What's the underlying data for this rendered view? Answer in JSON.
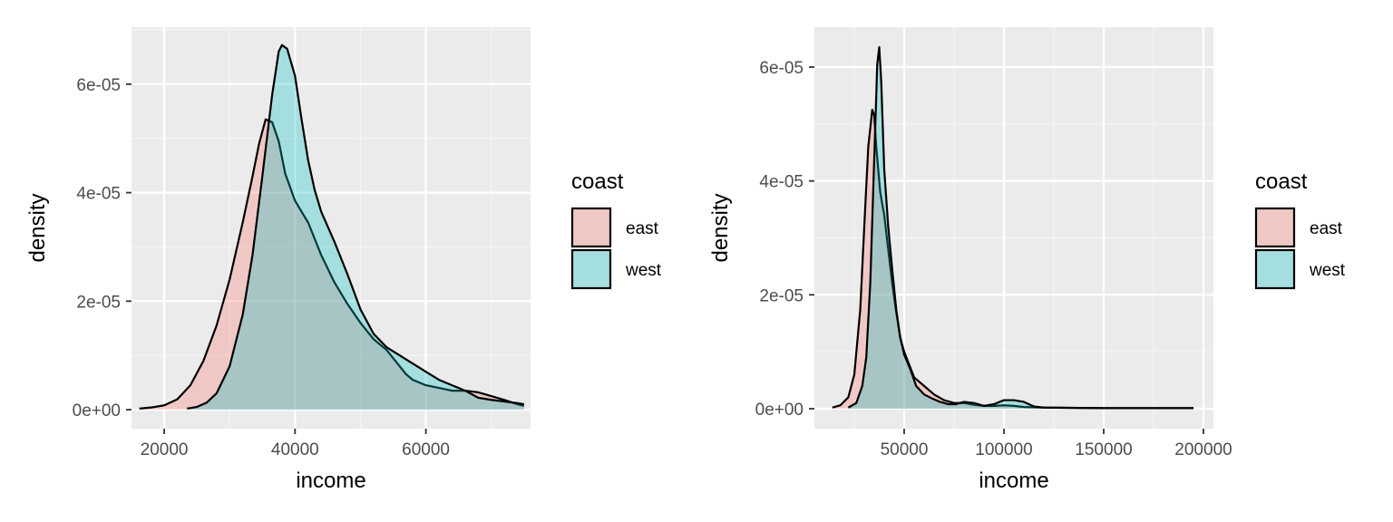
{
  "colors": {
    "panel_bg": "#ebebeb",
    "grid_major": "#ffffff",
    "grid_minor": "#f5f5f5",
    "east_fill": "#f8766d",
    "west_fill": "#00bfc4",
    "outline": "#000000"
  },
  "chart_data": [
    {
      "type": "area",
      "xlabel": "income",
      "ylabel": "density",
      "xlim": [
        15000,
        76000
      ],
      "ylim": [
        -3.5e-06,
        7.05e-05
      ],
      "x_ticks": [
        20000,
        40000,
        60000
      ],
      "x_tick_labels": [
        "20000",
        "40000",
        "60000"
      ],
      "y_ticks": [
        0,
        2e-05,
        4e-05,
        6e-05
      ],
      "y_tick_labels": [
        "0e+00",
        "2e-05",
        "4e-05",
        "6e-05"
      ],
      "grid": true,
      "legend": {
        "title": "coast",
        "position": "right",
        "entries": [
          "east",
          "west"
        ]
      },
      "series": [
        {
          "name": "east",
          "color": "#f8766d",
          "points": [
            [
              16200,
              2e-07
            ],
            [
              18000,
              4e-07
            ],
            [
              20000,
              8e-07
            ],
            [
              22000,
              1.9e-06
            ],
            [
              24000,
              4.5e-06
            ],
            [
              26000,
              9e-06
            ],
            [
              28000,
              1.55e-05
            ],
            [
              30000,
              2.4e-05
            ],
            [
              32000,
              3.45e-05
            ],
            [
              33500,
              4.3e-05
            ],
            [
              34500,
              4.9e-05
            ],
            [
              35500,
              5.35e-05
            ],
            [
              36500,
              5.3e-05
            ],
            [
              37500,
              4.95e-05
            ],
            [
              38500,
              4.35e-05
            ],
            [
              40000,
              3.85e-05
            ],
            [
              42000,
              3.45e-05
            ],
            [
              44000,
              2.85e-05
            ],
            [
              46000,
              2.35e-05
            ],
            [
              48000,
              1.95e-05
            ],
            [
              50000,
              1.6e-05
            ],
            [
              52000,
              1.3e-05
            ],
            [
              54000,
              1.1e-05
            ],
            [
              56000,
              8e-06
            ],
            [
              57000,
              6.5e-06
            ],
            [
              58000,
              5.5e-06
            ],
            [
              60000,
              4.5e-06
            ],
            [
              62000,
              4e-06
            ],
            [
              64000,
              3.5e-06
            ],
            [
              66000,
              3.5e-06
            ],
            [
              68000,
              3.2e-06
            ],
            [
              70000,
              2.5e-06
            ],
            [
              72000,
              1.8e-06
            ],
            [
              74000,
              1e-06
            ],
            [
              75000,
              7e-07
            ]
          ]
        },
        {
          "name": "west",
          "color": "#00bfc4",
          "points": [
            [
              23500,
              2e-07
            ],
            [
              25000,
              5e-07
            ],
            [
              26500,
              1.3e-06
            ],
            [
              28000,
              3e-06
            ],
            [
              30000,
              8e-06
            ],
            [
              32000,
              1.75e-05
            ],
            [
              33500,
              2.85e-05
            ],
            [
              35000,
              4.3e-05
            ],
            [
              36500,
              5.8e-05
            ],
            [
              37500,
              6.6e-05
            ],
            [
              38000,
              6.72e-05
            ],
            [
              38800,
              6.65e-05
            ],
            [
              40000,
              6.15e-05
            ],
            [
              41000,
              5.35e-05
            ],
            [
              42000,
              4.6e-05
            ],
            [
              43000,
              4.05e-05
            ],
            [
              44000,
              3.65e-05
            ],
            [
              46000,
              3.1e-05
            ],
            [
              48000,
              2.5e-05
            ],
            [
              50000,
              1.85e-05
            ],
            [
              52000,
              1.4e-05
            ],
            [
              54000,
              1.15e-05
            ],
            [
              56000,
              1e-05
            ],
            [
              58000,
              8.5e-06
            ],
            [
              60000,
              7e-06
            ],
            [
              62000,
              5.5e-06
            ],
            [
              64000,
              4.5e-06
            ],
            [
              66000,
              3.5e-06
            ],
            [
              68000,
              2.2e-06
            ],
            [
              70000,
              1.8e-06
            ],
            [
              72000,
              1.5e-06
            ],
            [
              74000,
              1.2e-06
            ],
            [
              75000,
              1e-06
            ]
          ]
        }
      ]
    },
    {
      "type": "area",
      "xlabel": "income",
      "ylabel": "density",
      "xlim": [
        5000,
        205000
      ],
      "ylim": [
        -3.5e-06,
        6.7e-05
      ],
      "x_ticks": [
        50000,
        100000,
        150000,
        200000
      ],
      "x_tick_labels": [
        "50000",
        "100000",
        "150000",
        "200000"
      ],
      "y_ticks": [
        0,
        2e-05,
        4e-05,
        6e-05
      ],
      "y_tick_labels": [
        "0e+00",
        "2e-05",
        "4e-05",
        "6e-05"
      ],
      "grid": true,
      "legend": {
        "title": "coast",
        "position": "right",
        "entries": [
          "east",
          "west"
        ]
      },
      "series": [
        {
          "name": "east",
          "color": "#f8766d",
          "points": [
            [
              14000,
              2e-07
            ],
            [
              18000,
              6e-07
            ],
            [
              22000,
              2e-06
            ],
            [
              25000,
              6e-06
            ],
            [
              28000,
              1.75e-05
            ],
            [
              30000,
              3.2e-05
            ],
            [
              32000,
              4.6e-05
            ],
            [
              34000,
              5.25e-05
            ],
            [
              35000,
              5.15e-05
            ],
            [
              36000,
              4.6e-05
            ],
            [
              38000,
              3.8e-05
            ],
            [
              40000,
              3.4e-05
            ],
            [
              42000,
              2.8e-05
            ],
            [
              44000,
              2.2e-05
            ],
            [
              46000,
              1.7e-05
            ],
            [
              48000,
              1.25e-05
            ],
            [
              50000,
              1e-05
            ],
            [
              55000,
              5.5e-06
            ],
            [
              60000,
              4e-06
            ],
            [
              65000,
              2.5e-06
            ],
            [
              70000,
              1.5e-06
            ],
            [
              75000,
              1e-06
            ],
            [
              80000,
              1e-06
            ],
            [
              85000,
              7e-07
            ],
            [
              90000,
              5e-07
            ],
            [
              95000,
              5e-07
            ],
            [
              100000,
              6e-07
            ],
            [
              105000,
              5e-07
            ],
            [
              110000,
              3e-07
            ],
            [
              120000,
              2e-07
            ],
            [
              150000,
              1e-07
            ],
            [
              195000,
              1e-07
            ]
          ]
        },
        {
          "name": "west",
          "color": "#00bfc4",
          "points": [
            [
              22000,
              2e-07
            ],
            [
              26000,
              1e-06
            ],
            [
              29000,
              4e-06
            ],
            [
              31000,
              9e-06
            ],
            [
              33000,
              2.2e-05
            ],
            [
              35000,
              4.4e-05
            ],
            [
              36500,
              6.05e-05
            ],
            [
              37500,
              6.35e-05
            ],
            [
              38500,
              5.75e-05
            ],
            [
              40000,
              4.2e-05
            ],
            [
              42000,
              3.2e-05
            ],
            [
              44000,
              2.45e-05
            ],
            [
              46000,
              1.75e-05
            ],
            [
              48000,
              1.25e-05
            ],
            [
              50000,
              9.5e-06
            ],
            [
              53000,
              7e-06
            ],
            [
              56000,
              4e-06
            ],
            [
              60000,
              2.5e-06
            ],
            [
              64000,
              1.8e-06
            ],
            [
              68000,
              1.2e-06
            ],
            [
              72000,
              8e-07
            ],
            [
              76000,
              8e-07
            ],
            [
              80000,
              1.2e-06
            ],
            [
              85000,
              1e-06
            ],
            [
              90000,
              5e-07
            ],
            [
              95000,
              8e-07
            ],
            [
              100000,
              1.5e-06
            ],
            [
              105000,
              1.5e-06
            ],
            [
              110000,
              1.2e-06
            ],
            [
              115000,
              4e-07
            ],
            [
              120000,
              2e-07
            ],
            [
              150000,
              1e-07
            ],
            [
              195000,
              1e-07
            ]
          ]
        }
      ]
    }
  ]
}
